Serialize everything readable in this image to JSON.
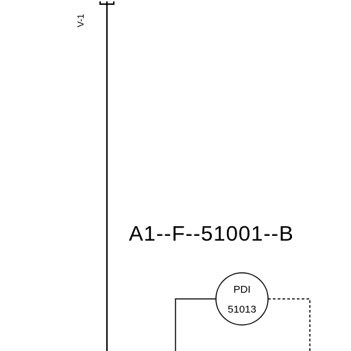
{
  "diagram": {
    "vertical_label": "V-1",
    "line_tag": "A1--F--51001--B",
    "instrument": {
      "function": "PDI",
      "number": "51013"
    },
    "colors": {
      "background": "#ffffff",
      "stroke": "#000000"
    }
  }
}
